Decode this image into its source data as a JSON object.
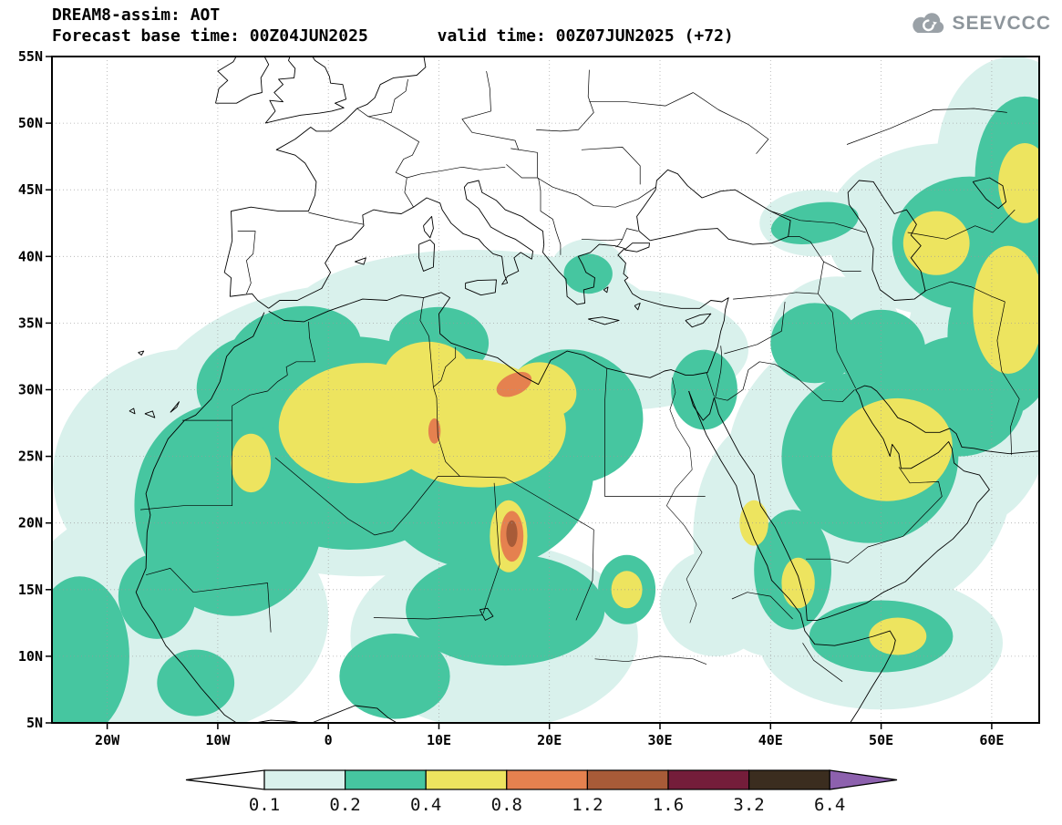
{
  "header": {
    "title": "DREAM8-assim: AOT",
    "subtitle": "Forecast base time: 00Z04JUN2025       valid time: 00Z07JUN2025 (+72)",
    "logo_text": "SEEVCCC",
    "logo_color": "#9aa1a7"
  },
  "chart_data": {
    "type": "heatmap",
    "title": "DREAM8-assim: AOT",
    "variable": "AOT",
    "model": "DREAM8-assim",
    "forecast_base_time": "00Z04JUN2025",
    "valid_time": "00Z07JUN2025",
    "lead": "+72",
    "x_ticks": [
      "20W",
      "10W",
      "0",
      "10E",
      "20E",
      "30E",
      "40E",
      "50E",
      "60E"
    ],
    "x_tick_lons": [
      -20,
      -10,
      0,
      10,
      20,
      30,
      40,
      50,
      60
    ],
    "y_ticks": [
      "55N",
      "50N",
      "45N",
      "40N",
      "35N",
      "30N",
      "25N",
      "20N",
      "15N",
      "10N",
      "5N"
    ],
    "y_tick_lats": [
      55,
      50,
      45,
      40,
      35,
      30,
      25,
      20,
      15,
      10,
      5
    ],
    "lon_range": [
      -25,
      64.3
    ],
    "lat_range": [
      5,
      55
    ],
    "grid": true,
    "legend_position": "bottom",
    "colorbar": {
      "levels": [
        "0.1",
        "0.2",
        "0.4",
        "0.8",
        "1.2",
        "1.6",
        "3.2",
        "6.4"
      ],
      "level_values": [
        0.1,
        0.2,
        0.4,
        0.8,
        1.2,
        1.6,
        3.2,
        6.4
      ],
      "colors": [
        "#ffffff",
        "#d9f1ec",
        "#46c6a0",
        "#ede45f",
        "#e5814f",
        "#a85b38",
        "#741d3a",
        "#3b2d1f",
        "#8d61ae"
      ]
    },
    "regions": [
      [
        0.1,
        -14,
        13,
        14,
        9,
        0
      ],
      [
        0.1,
        -13,
        24,
        12,
        9,
        -15
      ],
      [
        0.1,
        3,
        27,
        20,
        11,
        0
      ],
      [
        0.1,
        15,
        11.5,
        13,
        7,
        0
      ],
      [
        0.1,
        13,
        35,
        17,
        5.5,
        0
      ],
      [
        0.1,
        27,
        33,
        11,
        4.5,
        0
      ],
      [
        0.1,
        40,
        19,
        7,
        9,
        0
      ],
      [
        0.1,
        49,
        24,
        13,
        11,
        0
      ],
      [
        0.1,
        59,
        31,
        7,
        11,
        0
      ],
      [
        0.1,
        56,
        42,
        11,
        6.5,
        0
      ],
      [
        0.1,
        62,
        47,
        7,
        8,
        0
      ],
      [
        0.1,
        50,
        11,
        11,
        5,
        0
      ],
      [
        0.1,
        23.5,
        38.8,
        3.5,
        2.5,
        0
      ],
      [
        0.1,
        46,
        34,
        6,
        4.5,
        0
      ],
      [
        0.1,
        35,
        14,
        5,
        4,
        0
      ],
      [
        0.1,
        44,
        42.5,
        5,
        2.5,
        0
      ],
      [
        0.2,
        -9,
        21,
        8.5,
        8,
        -10
      ],
      [
        0.2,
        2,
        26,
        12,
        8,
        0
      ],
      [
        0.2,
        14,
        24,
        10,
        7.5,
        0
      ],
      [
        0.2,
        22,
        28,
        6.5,
        5,
        15
      ],
      [
        0.2,
        -3,
        33,
        6,
        3.2,
        -10
      ],
      [
        0.2,
        16,
        13.5,
        9,
        4.2,
        0
      ],
      [
        0.2,
        -15.5,
        14.5,
        3.5,
        3.2,
        0
      ],
      [
        0.2,
        6,
        8.5,
        5,
        3.2,
        0
      ],
      [
        0.2,
        27,
        15,
        2.6,
        2.6,
        0
      ],
      [
        0.2,
        49,
        25,
        8,
        6.5,
        -10
      ],
      [
        0.2,
        57,
        29.5,
        6,
        4.5,
        0
      ],
      [
        0.2,
        61,
        34,
        5,
        6,
        0
      ],
      [
        0.2,
        58,
        41,
        7,
        5,
        0
      ],
      [
        0.2,
        63,
        46,
        4.5,
        6,
        0
      ],
      [
        0.2,
        42,
        16.5,
        3.5,
        4.5,
        0
      ],
      [
        0.2,
        50,
        11.5,
        6.5,
        2.7,
        0
      ],
      [
        0.2,
        23.5,
        38.7,
        2.2,
        1.5,
        0
      ],
      [
        0.2,
        34,
        30,
        3,
        3,
        0
      ],
      [
        0.2,
        44,
        33.5,
        4,
        3,
        0
      ],
      [
        0.2,
        -22.5,
        10,
        4.5,
        6,
        0
      ],
      [
        0.2,
        10,
        33.5,
        4.5,
        2.7,
        0
      ],
      [
        0.2,
        -7,
        30.5,
        5,
        3.5,
        -20
      ],
      [
        0.2,
        50,
        33,
        4,
        3,
        0
      ],
      [
        0.2,
        44,
        42.5,
        4,
        1.5,
        -10
      ],
      [
        0.2,
        -12,
        8,
        3.5,
        2.5,
        0
      ],
      [
        0.4,
        3,
        27.5,
        7.5,
        4.5,
        -5
      ],
      [
        0.4,
        13,
        27.5,
        8.5,
        4.8,
        5
      ],
      [
        0.4,
        9,
        31,
        4,
        2.6,
        0
      ],
      [
        0.4,
        -7,
        24.5,
        1.8,
        2.2,
        0
      ],
      [
        0.4,
        16.3,
        19,
        1.7,
        2.7,
        0
      ],
      [
        0.4,
        27,
        15,
        1.4,
        1.4,
        0
      ],
      [
        0.4,
        51,
        25.5,
        5.5,
        3.8,
        -15
      ],
      [
        0.4,
        42.5,
        15.5,
        1.5,
        1.9,
        0
      ],
      [
        0.4,
        51.5,
        11.5,
        2.6,
        1.4,
        0
      ],
      [
        0.4,
        55,
        41,
        3,
        2.4,
        0
      ],
      [
        0.4,
        61.5,
        36,
        3.2,
        4.8,
        0
      ],
      [
        0.4,
        63,
        45.5,
        2.4,
        3,
        0
      ],
      [
        0.4,
        19.5,
        30,
        3,
        2,
        20
      ],
      [
        0.4,
        38.5,
        20,
        1.3,
        1.7,
        0
      ],
      [
        0.8,
        16.8,
        30.4,
        1.7,
        0.8,
        -25
      ],
      [
        0.8,
        9.6,
        26.9,
        0.55,
        0.95,
        0
      ],
      [
        0.8,
        16.6,
        19,
        1.05,
        1.9,
        0
      ],
      [
        1.2,
        16.6,
        19.2,
        0.5,
        1,
        0
      ]
    ]
  }
}
